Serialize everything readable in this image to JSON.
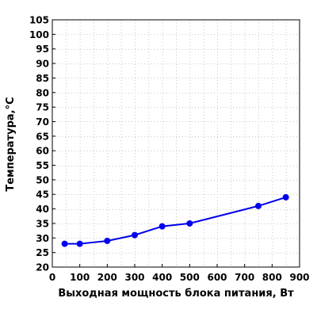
{
  "chart_data": {
    "type": "line",
    "xlabel": "Выходная мощность блока питания, Вт",
    "ylabel": "Температура,°C",
    "xlim": [
      0,
      900
    ],
    "ylim": [
      20,
      105
    ],
    "x_ticks": [
      0,
      100,
      200,
      300,
      400,
      500,
      600,
      700,
      800,
      900
    ],
    "y_ticks": [
      20,
      25,
      30,
      35,
      40,
      45,
      50,
      55,
      60,
      65,
      70,
      75,
      80,
      85,
      90,
      95,
      100,
      105
    ],
    "x_minor_step": 50,
    "grid": true,
    "series": [
      {
        "color": "#0000ee",
        "x": [
          45,
          100,
          200,
          300,
          400,
          500,
          750,
          850
        ],
        "y": [
          28,
          28,
          29,
          31,
          34,
          35,
          41,
          44
        ]
      }
    ]
  }
}
